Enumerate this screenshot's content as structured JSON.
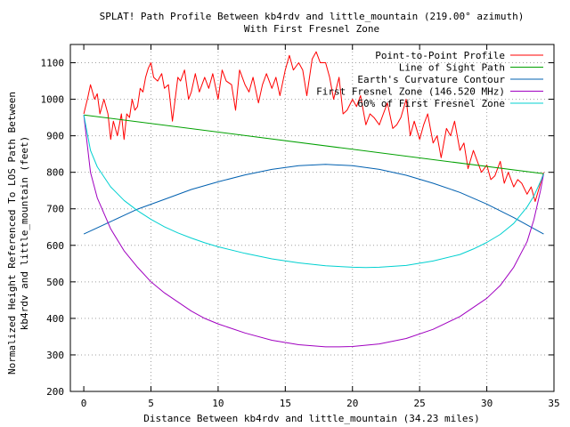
{
  "chart_data": {
    "type": "line",
    "title_line1": "SPLAT! Path Profile Between kb4rdv and little_mountain (219.00° azimuth)",
    "title_line2": "With First Fresnel Zone",
    "xlabel": "Distance Between kb4rdv and little_mountain (34.23 miles)",
    "ylabel_line1": "Normalized Height Referenced To LOS Path Between",
    "ylabel_line2": "kb4rdv and little_mountain (feet)",
    "xlim": [
      -1,
      35
    ],
    "ylim": [
      200,
      1150
    ],
    "x_ticks": [
      0,
      5,
      10,
      15,
      20,
      25,
      30,
      35
    ],
    "y_ticks": [
      200,
      300,
      400,
      500,
      600,
      700,
      800,
      900,
      1000,
      1100
    ],
    "grid": true,
    "legend_position": "top-right",
    "series": [
      {
        "name": "Point-to-Point Profile",
        "color": "#ff0000",
        "x": [
          0,
          0.3,
          0.5,
          0.8,
          1.0,
          1.2,
          1.5,
          1.8,
          2.0,
          2.2,
          2.5,
          2.8,
          3.0,
          3.2,
          3.4,
          3.6,
          3.8,
          4.0,
          4.2,
          4.4,
          4.6,
          4.8,
          5.0,
          5.2,
          5.5,
          5.8,
          6.0,
          6.3,
          6.6,
          7.0,
          7.2,
          7.5,
          7.8,
          8.0,
          8.3,
          8.6,
          9.0,
          9.3,
          9.6,
          10.0,
          10.3,
          10.6,
          11.0,
          11.3,
          11.6,
          12.0,
          12.3,
          12.6,
          13.0,
          13.3,
          13.6,
          14.0,
          14.3,
          14.6,
          15.0,
          15.3,
          15.6,
          16.0,
          16.3,
          16.6,
          17.0,
          17.3,
          17.6,
          18.0,
          18.3,
          18.6,
          19.0,
          19.3,
          19.6,
          20.0,
          20.3,
          20.6,
          21.0,
          21.3,
          21.6,
          22.0,
          22.3,
          22.6,
          23.0,
          23.3,
          23.6,
          24.0,
          24.3,
          24.6,
          25.0,
          25.3,
          25.6,
          26.0,
          26.3,
          26.6,
          27.0,
          27.3,
          27.6,
          28.0,
          28.3,
          28.6,
          29.0,
          29.3,
          29.6,
          30.0,
          30.3,
          30.6,
          31.0,
          31.3,
          31.6,
          32.0,
          32.3,
          32.6,
          33.0,
          33.3,
          33.6,
          34.0,
          34.23
        ],
        "y": [
          960,
          1005,
          1040,
          1000,
          1015,
          960,
          1000,
          960,
          890,
          940,
          900,
          960,
          890,
          960,
          950,
          1000,
          970,
          980,
          1030,
          1020,
          1060,
          1085,
          1100,
          1060,
          1050,
          1070,
          1030,
          1040,
          940,
          1060,
          1050,
          1080,
          1000,
          1020,
          1070,
          1020,
          1060,
          1030,
          1070,
          1000,
          1080,
          1050,
          1040,
          970,
          1080,
          1040,
          1020,
          1060,
          990,
          1040,
          1070,
          1030,
          1060,
          1010,
          1080,
          1120,
          1080,
          1100,
          1080,
          1010,
          1110,
          1130,
          1100,
          1100,
          1060,
          1000,
          1060,
          960,
          970,
          1000,
          980,
          1010,
          930,
          960,
          950,
          930,
          960,
          990,
          920,
          930,
          950,
          1000,
          900,
          940,
          890,
          930,
          960,
          880,
          900,
          840,
          920,
          900,
          940,
          860,
          880,
          810,
          860,
          830,
          800,
          820,
          780,
          790,
          830,
          770,
          800,
          760,
          780,
          770,
          740,
          760,
          720,
          770,
          800
        ]
      },
      {
        "name": "Line of Sight Path",
        "color": "#00a000",
        "x": [
          0,
          34.23
        ],
        "y": [
          957,
          796
        ]
      },
      {
        "name": "Earth's Curvature Contour",
        "color": "#0060b0",
        "x": [
          0,
          2,
          4,
          6,
          8,
          10,
          12,
          14,
          16,
          18,
          20,
          22,
          24,
          26,
          28,
          30,
          32,
          34.23
        ],
        "y": [
          631,
          665,
          699,
          726,
          753,
          774,
          793,
          808,
          818,
          822,
          818,
          808,
          792,
          770,
          745,
          713,
          676,
          631
        ]
      },
      {
        "name": "First Fresnel Zone (146.520 MHz)",
        "color": "#a000c0",
        "x": [
          0,
          0.5,
          1,
          2,
          3,
          4,
          5,
          6,
          7,
          8,
          9,
          10,
          12,
          14,
          16,
          18,
          19,
          20,
          22,
          24,
          26,
          28,
          29,
          30,
          31,
          32,
          33,
          33.5,
          34,
          34.23
        ],
        "y": [
          957,
          800,
          730,
          645,
          585,
          540,
          500,
          470,
          445,
          420,
          400,
          385,
          360,
          340,
          328,
          322,
          322,
          323,
          330,
          345,
          370,
          405,
          430,
          455,
          490,
          540,
          610,
          670,
          750,
          796
        ]
      },
      {
        "name": "60% of First Fresnel Zone",
        "color": "#00d0d0",
        "x": [
          0,
          0.5,
          1,
          2,
          3,
          4,
          5,
          6,
          7,
          8,
          9,
          10,
          12,
          14,
          16,
          18,
          20,
          21,
          22,
          24,
          26,
          28,
          29,
          30,
          31,
          32,
          33,
          33.5,
          34,
          34.23
        ],
        "y": [
          957,
          860,
          815,
          760,
          723,
          695,
          671,
          651,
          634,
          620,
          607,
          596,
          578,
          563,
          552,
          544,
          540,
          539,
          540,
          545,
          557,
          575,
          590,
          608,
          630,
          660,
          705,
          735,
          775,
          796
        ]
      }
    ]
  }
}
